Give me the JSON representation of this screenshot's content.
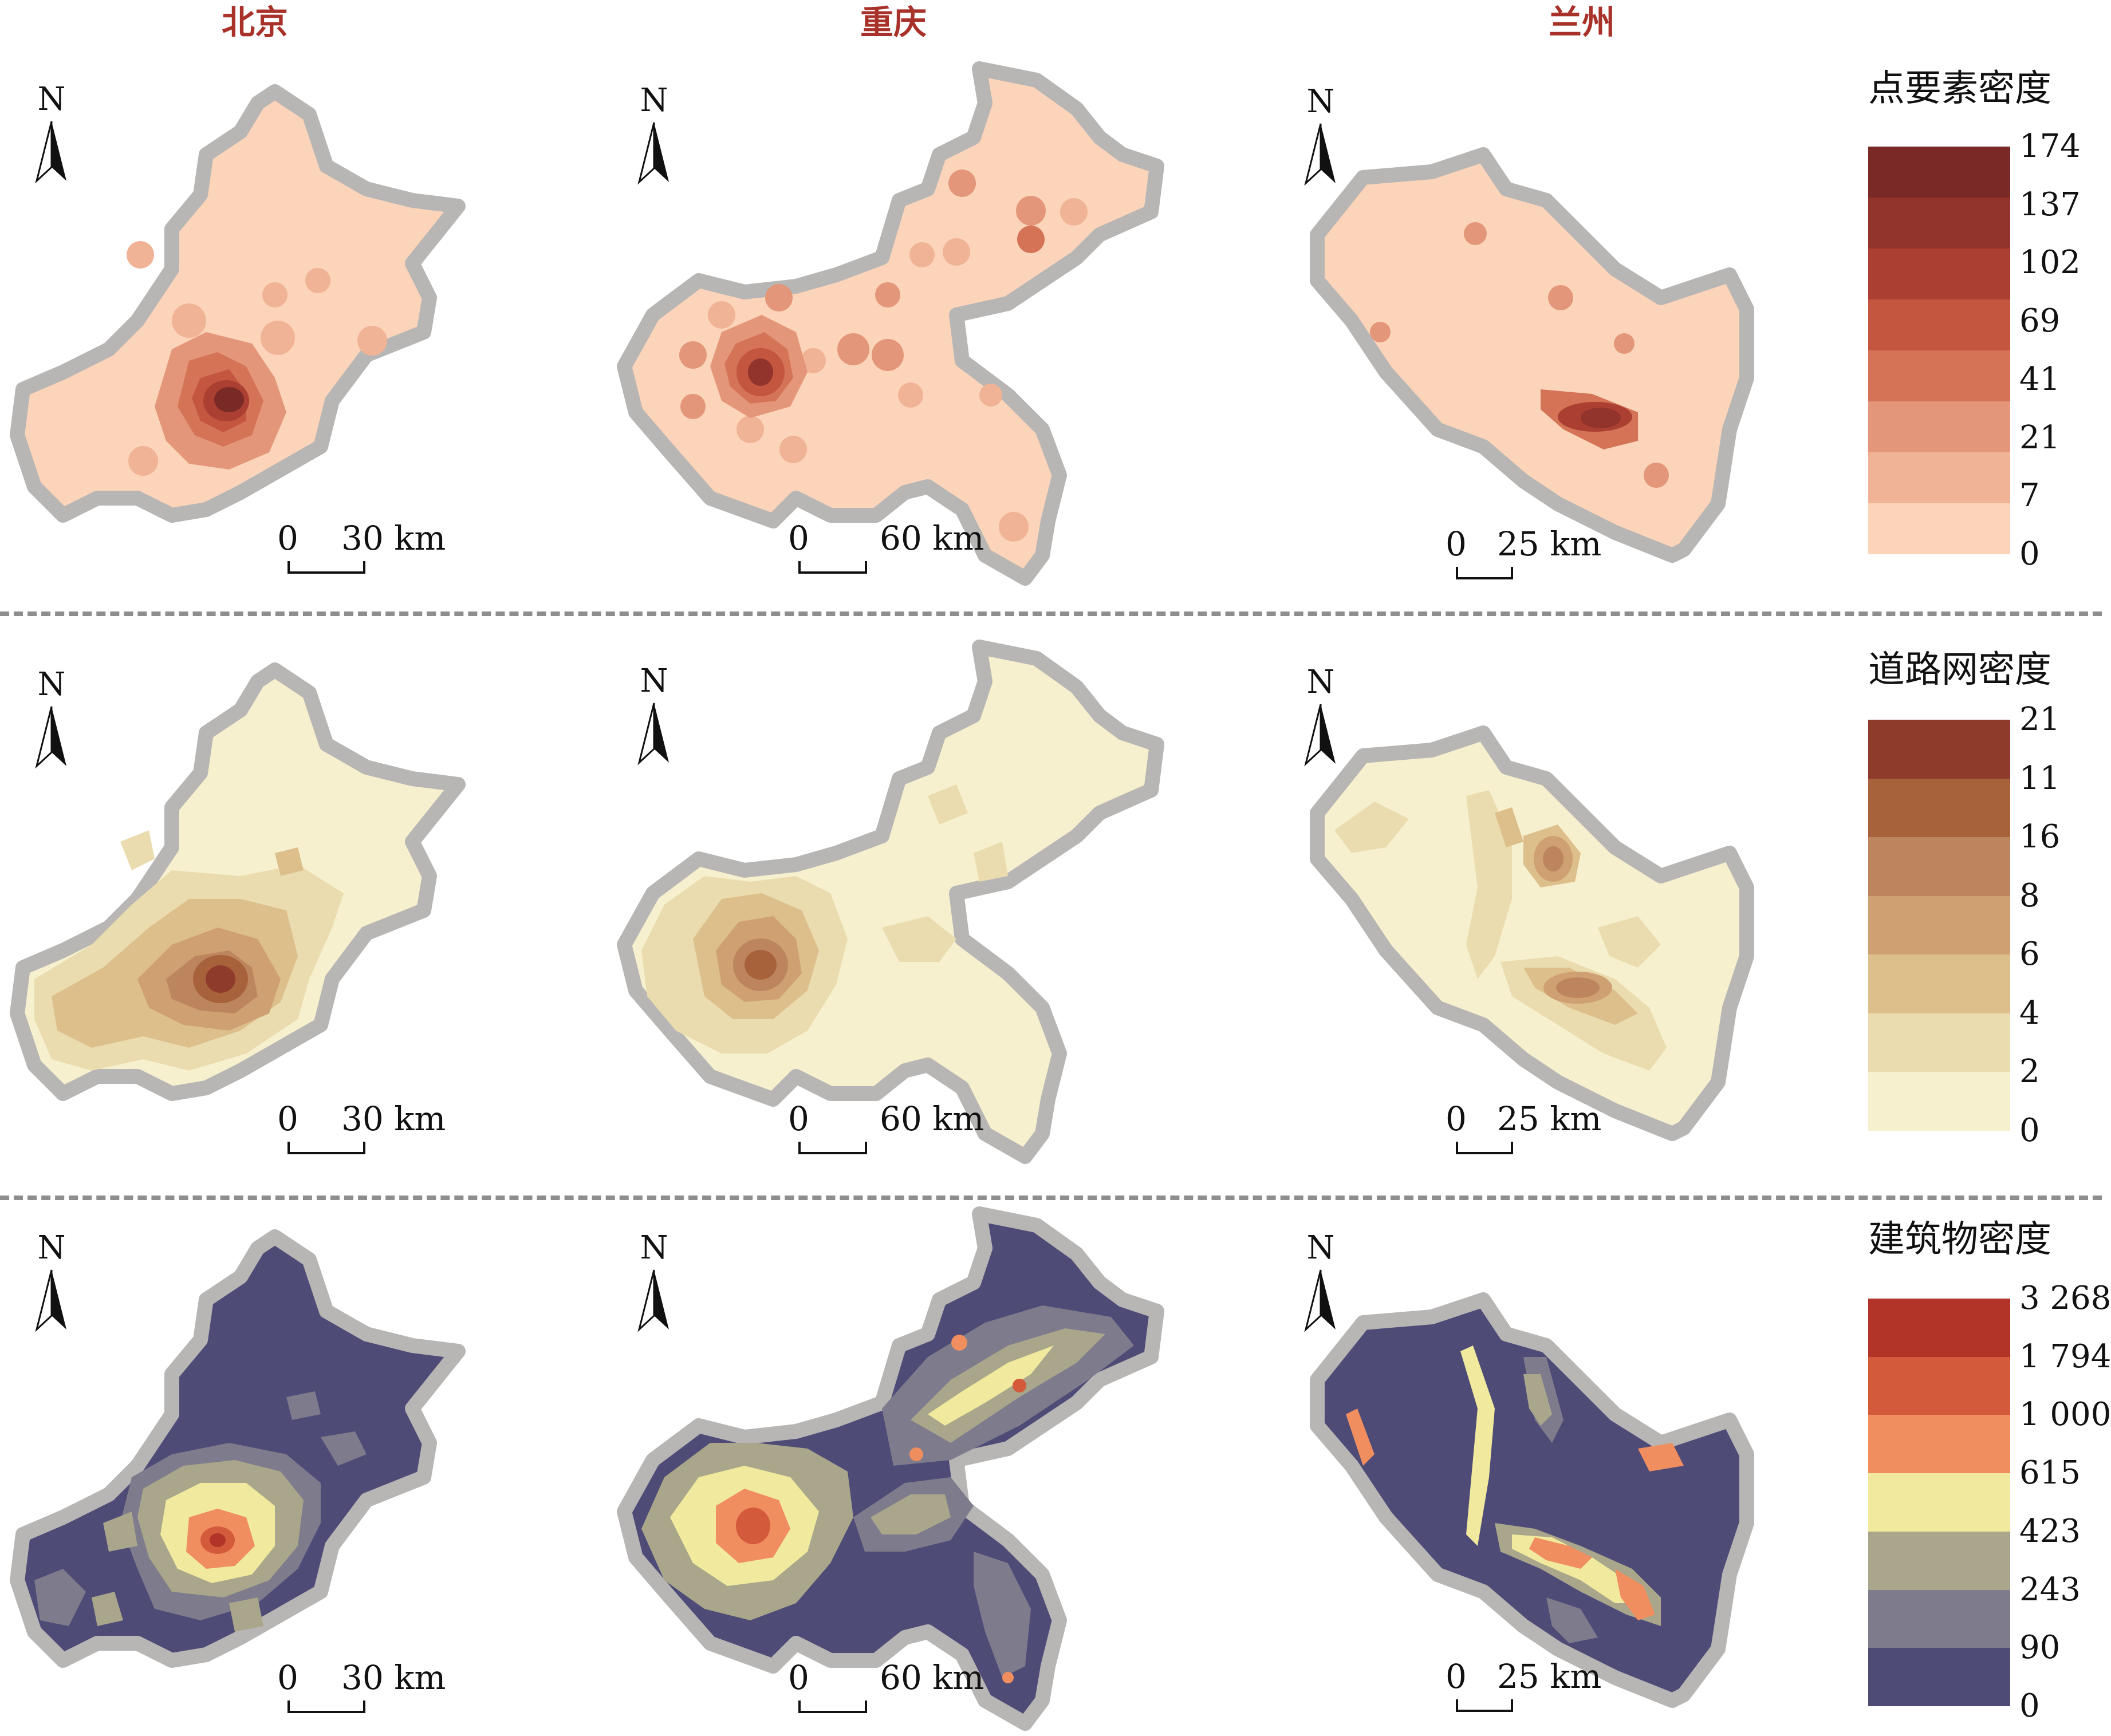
{
  "column_titles": [
    "北京",
    "重庆",
    "兰州"
  ],
  "north_label": "N",
  "scale_zero": "0",
  "scale_distances": [
    "30 km",
    "60 km",
    "25 km"
  ],
  "legends": [
    {
      "title": "点要素密度",
      "labels": [
        "174",
        "137",
        "102",
        "69",
        "41",
        "21",
        "7",
        "0"
      ],
      "colors": [
        "#7a2a26",
        "#92332c",
        "#ab3f31",
        "#c45640",
        "#d47356",
        "#e39679",
        "#f1b396",
        "#fcd4b9"
      ]
    },
    {
      "title": "道路网密度",
      "labels": [
        "21",
        "11",
        "16",
        "8",
        "6",
        "4",
        "2",
        "0"
      ],
      "colors": [
        "#8f3b2b",
        "#a8623b",
        "#bd855d",
        "#cfa072",
        "#ddbf8c",
        "#eadcaf",
        "#f6f0ce"
      ]
    },
    {
      "title": "建筑物密度",
      "labels": [
        "3 268",
        "1 794",
        "1 000",
        "615",
        "423",
        "243",
        "90",
        "0"
      ],
      "colors": [
        "#b23327",
        "#d45a3c",
        "#f08e60",
        "#f1ea9e",
        "#a9a68c",
        "#7e7b8c",
        "#4e4b77"
      ]
    }
  ]
}
